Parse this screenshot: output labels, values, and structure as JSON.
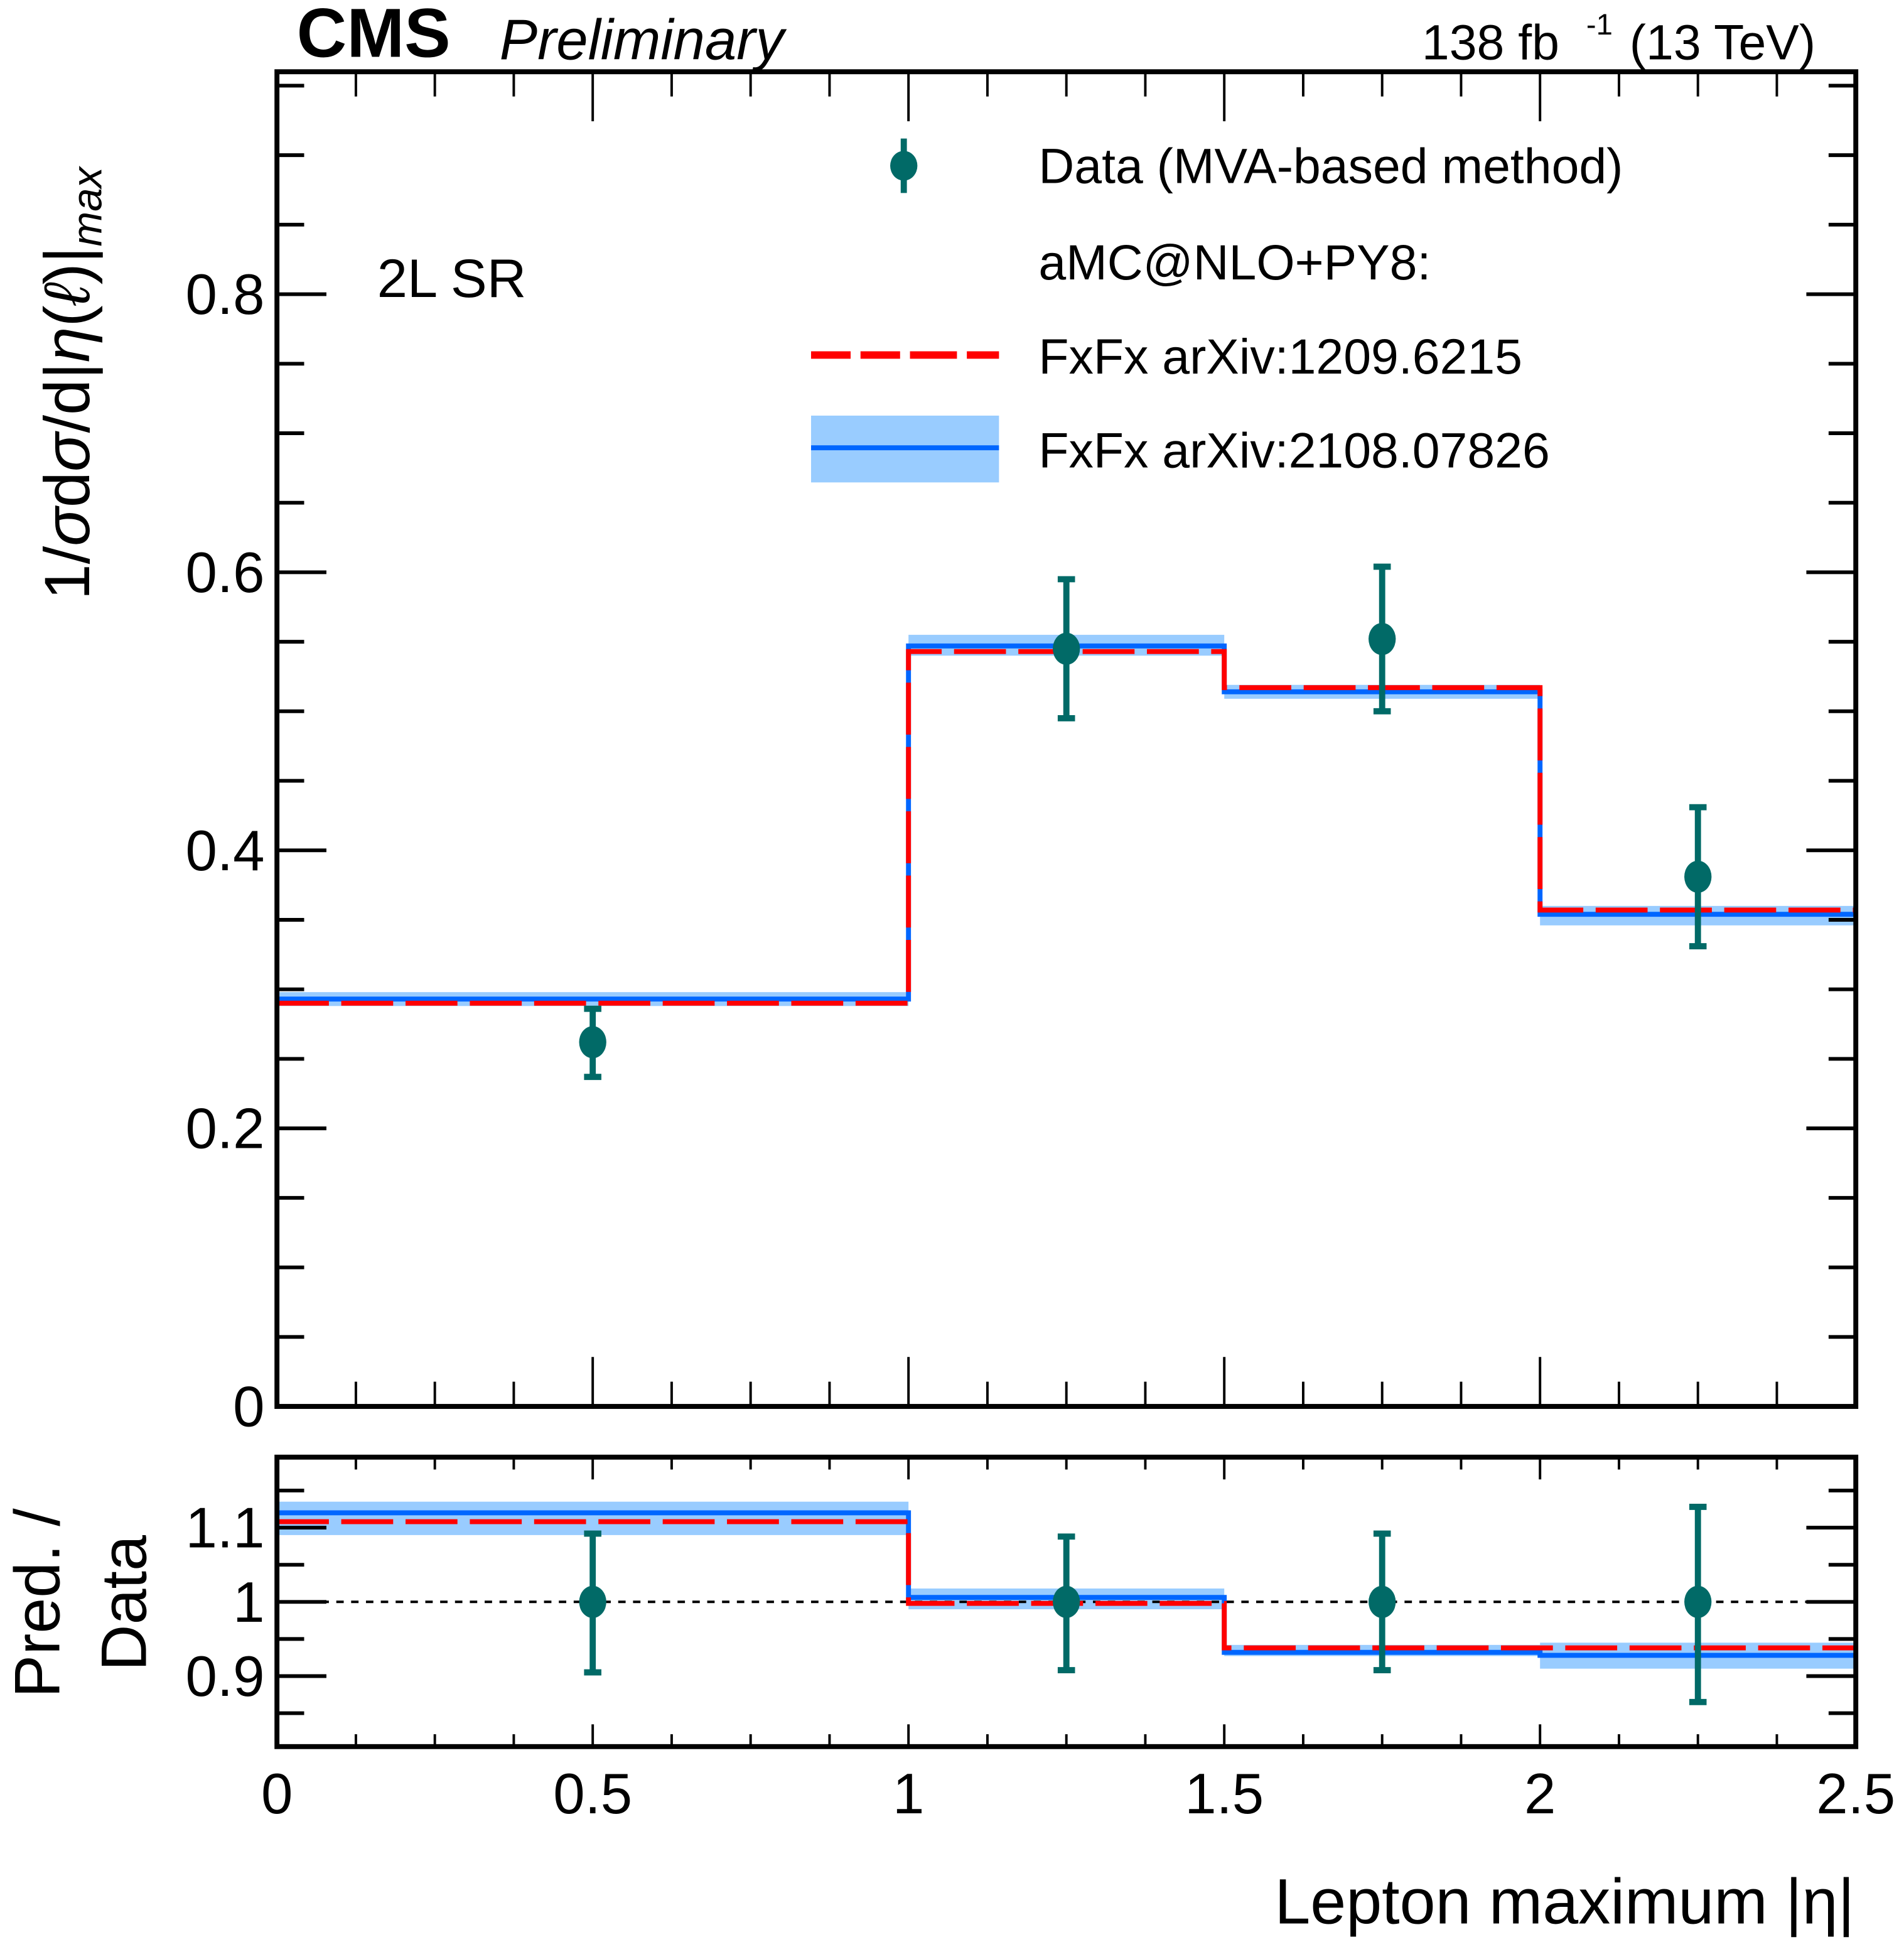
{
  "header": {
    "experiment": "CMS",
    "status": "Preliminary",
    "lumi_value": "138 fb",
    "lumi_exponent": "-1",
    "energy": "(13 TeV)"
  },
  "colors": {
    "data": "#016A67",
    "fxfx_1209": "#FF0000",
    "fxfx_2108_line": "#0066FF",
    "fxfx_2108_band": "#99CCFF"
  },
  "chart_data": [
    {
      "panel": "main",
      "type": "bar",
      "subtype": "step-histogram-with-data-points",
      "title": "",
      "annotation": "2L SR",
      "xlabel": "Lepton maximum |η|",
      "ylabel_parts": [
        "1/",
        "σ",
        "d",
        "σ",
        "/d|",
        "η",
        "(",
        "ℓ",
        ")|",
        "max"
      ],
      "ylabel": "1/σdσ/d|η(ℓ)|_max",
      "xlim": [
        0,
        2.5
      ],
      "ylim": [
        0,
        0.96
      ],
      "yticks": [
        0,
        0.2,
        0.4,
        0.6,
        0.8
      ],
      "ytick_labels": [
        "0",
        "0.2",
        "0.4",
        "0.6",
        "0.8"
      ],
      "bin_edges": [
        0,
        1,
        1.5,
        2,
        2.5
      ],
      "legend_placement": "top-right",
      "legend": [
        {
          "label": "Data (MVA-based method)",
          "kind": "data"
        },
        {
          "label": "aMC@NLO+PY8:",
          "kind": "header"
        },
        {
          "label": "FxFx arXiv:1209.6215",
          "kind": "dashed-line"
        },
        {
          "label": "FxFx arXiv:2108.07826",
          "kind": "line-band"
        }
      ],
      "series": [
        {
          "name": "Data (MVA-based method)",
          "x": [
            0.5,
            1.25,
            1.75,
            2.25
          ],
          "values": [
            0.262,
            0.545,
            0.552,
            0.381
          ],
          "err_up": [
            0.024,
            0.05,
            0.052,
            0.05
          ],
          "err_down": [
            0.025,
            0.05,
            0.052,
            0.05
          ]
        },
        {
          "name": "FxFx arXiv:1209.6215",
          "values": [
            0.29,
            0.543,
            0.517,
            0.357
          ]
        },
        {
          "name": "FxFx arXiv:2108.07826",
          "values": [
            0.293,
            0.547,
            0.514,
            0.354
          ],
          "band_low": [
            0.288,
            0.54,
            0.509,
            0.346
          ],
          "band_high": [
            0.298,
            0.555,
            0.519,
            0.36
          ]
        }
      ]
    },
    {
      "panel": "ratio",
      "type": "bar",
      "subtype": "step-histogram-ratio",
      "ylabel_lines": [
        "Pred. /",
        "Data"
      ],
      "xlabel": "Lepton maximum |η|",
      "xlim": [
        0,
        2.5
      ],
      "ylim": [
        0.805,
        1.195
      ],
      "xticks": [
        0,
        0.5,
        1,
        1.5,
        2,
        2.5
      ],
      "xtick_labels": [
        "0",
        "0.5",
        "1",
        "1.5",
        "2",
        "2.5"
      ],
      "yticks": [
        0.9,
        1,
        1.1
      ],
      "ytick_labels": [
        "0.9",
        "1",
        "1.1"
      ],
      "reference_line": 1,
      "bin_edges": [
        0,
        1,
        1.5,
        2,
        2.5
      ],
      "series": [
        {
          "name": "Data (MVA-based method)",
          "x": [
            0.5,
            1.25,
            1.75,
            2.25
          ],
          "values": [
            1,
            1,
            1,
            1
          ],
          "err_up": [
            0.092,
            0.088,
            0.092,
            0.128
          ],
          "err_down": [
            0.095,
            0.092,
            0.092,
            0.135
          ]
        },
        {
          "name": "FxFx arXiv:1209.6215",
          "values": [
            1.108,
            0.998,
            0.938,
            0.938
          ]
        },
        {
          "name": "FxFx arXiv:2108.07826",
          "values": [
            1.12,
            1.006,
            0.932,
            0.928
          ],
          "band_low": [
            1.09,
            0.99,
            0.927,
            0.91
          ],
          "band_high": [
            1.135,
            1.018,
            0.942,
            0.945
          ]
        }
      ]
    }
  ]
}
